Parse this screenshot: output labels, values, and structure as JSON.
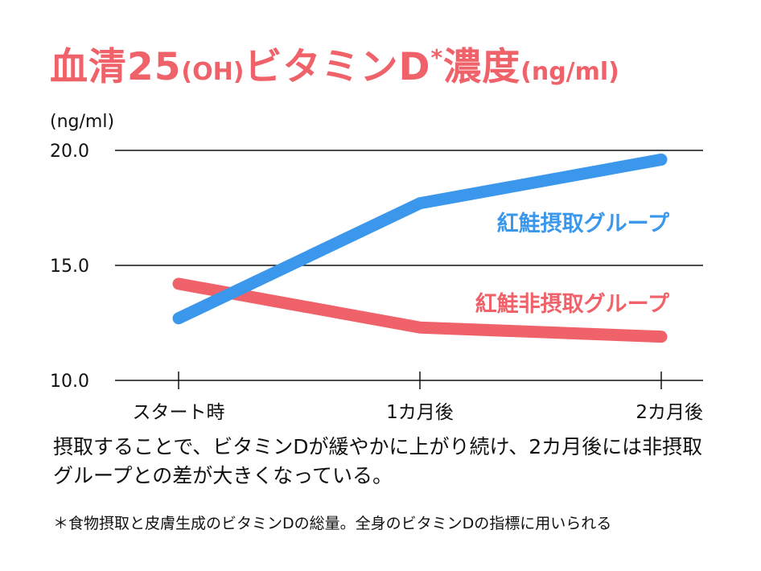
{
  "title": {
    "main": "血清25",
    "oh": "(OH)",
    "mid": "ビタミンD",
    "star": "*",
    "end": "濃度",
    "unit": "(ng/ml)"
  },
  "chart_data": {
    "type": "line",
    "ylabel": "(ng/ml)",
    "ylim": [
      10.0,
      20.0
    ],
    "yticks": [
      "10.0",
      "15.0",
      "20.0"
    ],
    "categories": [
      "スタート時",
      "1カ月後",
      "2カ月後"
    ],
    "grid": true,
    "series": [
      {
        "name": "紅鮭摂取グループ",
        "values": [
          12.7,
          17.7,
          19.6
        ],
        "color": "#3a97ec"
      },
      {
        "name": "紅鮭非摂取グループ",
        "values": [
          14.2,
          12.3,
          11.9
        ],
        "color": "#f0626a"
      }
    ]
  },
  "caption": "摂取することで、ビタミンDが緩やかに上がり続け、2カ月後には非摂取グループとの差が大きくなっている。",
  "footnote": "＊食物摂取と皮膚生成のビタミンDの総量。全身のビタミンDの指標に用いられる"
}
